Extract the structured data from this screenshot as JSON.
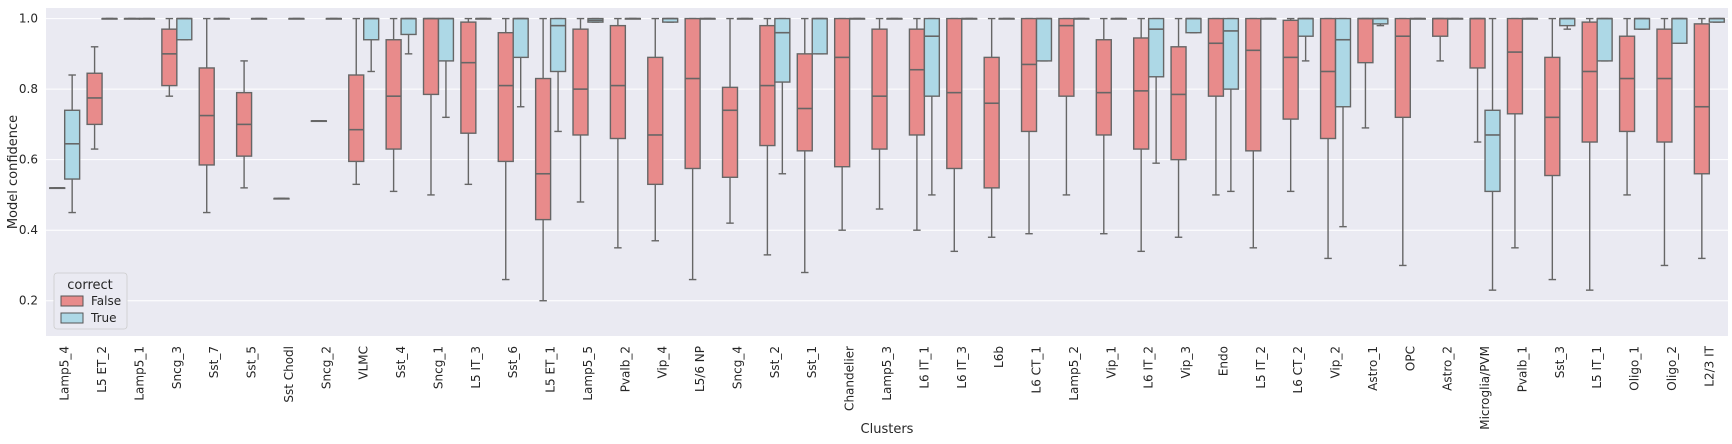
{
  "chart_data": {
    "type": "box",
    "title": "",
    "xlabel": "Clusters",
    "ylabel": "Model confidence",
    "ylim": [
      0.1,
      1.0
    ],
    "yticks": [
      "0.2",
      "0.4",
      "0.6",
      "0.8",
      "1.0"
    ],
    "ytick_values": [
      0.2,
      0.4,
      0.6,
      0.8,
      1.0
    ],
    "grid": true,
    "background_color": "#eaeaf2",
    "legend": {
      "title": "correct",
      "placement": "lower-left",
      "entries": [
        {
          "label": "False",
          "color": "#e88b8b"
        },
        {
          "label": "True",
          "color": "#add8e6"
        }
      ]
    },
    "categories": [
      "Lamp5_4",
      "L5 ET_2",
      "Lamp5_1",
      "Sncg_3",
      "Sst_7",
      "Sst_5",
      "Sst Chodl",
      "Sncg_2",
      "VLMC",
      "Sst_4",
      "Sncg_1",
      "L5 IT_3",
      "Sst_6",
      "L5 ET_1",
      "Lamp5_5",
      "Pvalb_2",
      "Vip_4",
      "L5/6 NP",
      "Sncg_4",
      "Sst_2",
      "Sst_1",
      "Chandelier",
      "Lamp5_3",
      "L6 IT_1",
      "L6 IT_3",
      "L6b",
      "L6 CT_1",
      "Lamp5_2",
      "Vip_1",
      "L6 IT_2",
      "Vip_3",
      "Endo",
      "L5 IT_2",
      "L6 CT_2",
      "Vip_2",
      "Astro_1",
      "OPC",
      "Astro_2",
      "Microglia/PVM",
      "Pvalb_1",
      "Sst_3",
      "L5 IT_1",
      "Oligo_1",
      "Oligo_2",
      "L2/3 IT"
    ],
    "series": [
      {
        "name": "False",
        "boxes": [
          {
            "min": 0.52,
            "q1": 0.52,
            "median": 0.52,
            "q3": 0.52,
            "max": 0.52
          },
          {
            "min": 0.63,
            "q1": 0.7,
            "median": 0.775,
            "q3": 0.845,
            "max": 0.92
          },
          {
            "min": 1.0,
            "q1": 1.0,
            "median": 1.0,
            "q3": 1.0,
            "max": 1.0
          },
          {
            "min": 0.78,
            "q1": 0.81,
            "median": 0.9,
            "q3": 0.97,
            "max": 1.0
          },
          {
            "min": 0.45,
            "q1": 0.585,
            "median": 0.725,
            "q3": 0.86,
            "max": 1.0
          },
          {
            "min": 0.52,
            "q1": 0.61,
            "median": 0.7,
            "q3": 0.79,
            "max": 0.88
          },
          {
            "min": 0.49,
            "q1": 0.49,
            "median": 0.49,
            "q3": 0.49,
            "max": 0.49
          },
          {
            "min": 0.71,
            "q1": 0.71,
            "median": 0.71,
            "q3": 0.71,
            "max": 0.71
          },
          {
            "min": 0.53,
            "q1": 0.595,
            "median": 0.685,
            "q3": 0.84,
            "max": 1.0
          },
          {
            "min": 0.51,
            "q1": 0.63,
            "median": 0.78,
            "q3": 0.94,
            "max": 1.0
          },
          {
            "min": 0.5,
            "q1": 0.785,
            "median": 1.0,
            "q3": 1.0,
            "max": 1.0
          },
          {
            "min": 0.53,
            "q1": 0.675,
            "median": 0.875,
            "q3": 0.99,
            "max": 1.0
          },
          {
            "min": 0.26,
            "q1": 0.595,
            "median": 0.81,
            "q3": 0.96,
            "max": 1.0
          },
          {
            "min": 0.2,
            "q1": 0.43,
            "median": 0.56,
            "q3": 0.83,
            "max": 1.0
          },
          {
            "min": 0.48,
            "q1": 0.67,
            "median": 0.8,
            "q3": 0.97,
            "max": 1.0
          },
          {
            "min": 0.35,
            "q1": 0.66,
            "median": 0.81,
            "q3": 0.98,
            "max": 1.0
          },
          {
            "min": 0.37,
            "q1": 0.53,
            "median": 0.67,
            "q3": 0.89,
            "max": 1.0
          },
          {
            "min": 0.26,
            "q1": 0.575,
            "median": 0.83,
            "q3": 1.0,
            "max": 1.0
          },
          {
            "min": 0.42,
            "q1": 0.55,
            "median": 0.74,
            "q3": 0.805,
            "max": 1.0
          },
          {
            "min": 0.33,
            "q1": 0.64,
            "median": 0.81,
            "q3": 0.98,
            "max": 1.0
          },
          {
            "min": 0.28,
            "q1": 0.625,
            "median": 0.745,
            "q3": 0.9,
            "max": 1.0
          },
          {
            "min": 0.4,
            "q1": 0.58,
            "median": 0.89,
            "q3": 1.0,
            "max": 1.0
          },
          {
            "min": 0.46,
            "q1": 0.63,
            "median": 0.78,
            "q3": 0.97,
            "max": 1.0
          },
          {
            "min": 0.4,
            "q1": 0.67,
            "median": 0.855,
            "q3": 0.97,
            "max": 1.0
          },
          {
            "min": 0.34,
            "q1": 0.575,
            "median": 0.79,
            "q3": 1.0,
            "max": 1.0
          },
          {
            "min": 0.38,
            "q1": 0.52,
            "median": 0.76,
            "q3": 0.89,
            "max": 1.0
          },
          {
            "min": 0.39,
            "q1": 0.68,
            "median": 0.87,
            "q3": 1.0,
            "max": 1.0
          },
          {
            "min": 0.5,
            "q1": 0.78,
            "median": 0.98,
            "q3": 1.0,
            "max": 1.0
          },
          {
            "min": 0.39,
            "q1": 0.67,
            "median": 0.79,
            "q3": 0.94,
            "max": 1.0
          },
          {
            "min": 0.34,
            "q1": 0.63,
            "median": 0.795,
            "q3": 0.945,
            "max": 1.0
          },
          {
            "min": 0.38,
            "q1": 0.6,
            "median": 0.785,
            "q3": 0.92,
            "max": 1.0
          },
          {
            "min": 0.5,
            "q1": 0.78,
            "median": 0.93,
            "q3": 1.0,
            "max": 1.0
          },
          {
            "min": 0.35,
            "q1": 0.625,
            "median": 0.91,
            "q3": 1.0,
            "max": 1.0
          },
          {
            "min": 0.51,
            "q1": 0.715,
            "median": 0.89,
            "q3": 0.995,
            "max": 1.0
          },
          {
            "min": 0.32,
            "q1": 0.66,
            "median": 0.85,
            "q3": 1.0,
            "max": 1.0
          },
          {
            "min": 0.69,
            "q1": 0.875,
            "median": 1.0,
            "q3": 1.0,
            "max": 1.0
          },
          {
            "min": 0.3,
            "q1": 0.72,
            "median": 0.95,
            "q3": 1.0,
            "max": 1.0
          },
          {
            "min": 0.88,
            "q1": 0.95,
            "median": 1.0,
            "q3": 1.0,
            "max": 1.0
          },
          {
            "min": 0.65,
            "q1": 0.86,
            "median": 1.0,
            "q3": 1.0,
            "max": 1.0
          },
          {
            "min": 0.35,
            "q1": 0.73,
            "median": 0.905,
            "q3": 1.0,
            "max": 1.0
          },
          {
            "min": 0.26,
            "q1": 0.555,
            "median": 0.72,
            "q3": 0.89,
            "max": 1.0
          },
          {
            "min": 0.23,
            "q1": 0.65,
            "median": 0.85,
            "q3": 0.99,
            "max": 1.0
          },
          {
            "min": 0.5,
            "q1": 0.68,
            "median": 0.83,
            "q3": 0.95,
            "max": 1.0
          },
          {
            "min": 0.3,
            "q1": 0.65,
            "median": 0.83,
            "q3": 0.97,
            "max": 1.0
          },
          {
            "min": 0.32,
            "q1": 0.56,
            "median": 0.75,
            "q3": 0.985,
            "max": 1.0
          }
        ]
      },
      {
        "name": "True",
        "boxes": [
          {
            "min": 0.45,
            "q1": 0.545,
            "median": 0.645,
            "q3": 0.74,
            "max": 0.84
          },
          {
            "min": 1.0,
            "q1": 1.0,
            "median": 1.0,
            "q3": 1.0,
            "max": 1.0
          },
          {
            "min": 1.0,
            "q1": 1.0,
            "median": 1.0,
            "q3": 1.0,
            "max": 1.0
          },
          {
            "min": 0.94,
            "q1": 0.94,
            "median": 1.0,
            "q3": 1.0,
            "max": 1.0
          },
          {
            "min": 1.0,
            "q1": 1.0,
            "median": 1.0,
            "q3": 1.0,
            "max": 1.0
          },
          {
            "min": 1.0,
            "q1": 1.0,
            "median": 1.0,
            "q3": 1.0,
            "max": 1.0
          },
          {
            "min": 1.0,
            "q1": 1.0,
            "median": 1.0,
            "q3": 1.0,
            "max": 1.0
          },
          {
            "min": 1.0,
            "q1": 1.0,
            "median": 1.0,
            "q3": 1.0,
            "max": 1.0
          },
          {
            "min": 0.85,
            "q1": 0.94,
            "median": 1.0,
            "q3": 1.0,
            "max": 1.0
          },
          {
            "min": 0.9,
            "q1": 0.955,
            "median": 1.0,
            "q3": 1.0,
            "max": 1.0
          },
          {
            "min": 0.72,
            "q1": 0.88,
            "median": 1.0,
            "q3": 1.0,
            "max": 1.0
          },
          {
            "min": 1.0,
            "q1": 1.0,
            "median": 1.0,
            "q3": 1.0,
            "max": 1.0
          },
          {
            "min": 0.75,
            "q1": 0.89,
            "median": 1.0,
            "q3": 1.0,
            "max": 1.0
          },
          {
            "min": 0.68,
            "q1": 0.85,
            "median": 0.98,
            "q3": 1.0,
            "max": 1.0
          },
          {
            "min": 0.99,
            "q1": 0.99,
            "median": 0.995,
            "q3": 1.0,
            "max": 1.0
          },
          {
            "min": 1.0,
            "q1": 1.0,
            "median": 1.0,
            "q3": 1.0,
            "max": 1.0
          },
          {
            "min": 0.99,
            "q1": 0.99,
            "median": 1.0,
            "q3": 1.0,
            "max": 1.0
          },
          {
            "min": 1.0,
            "q1": 1.0,
            "median": 1.0,
            "q3": 1.0,
            "max": 1.0
          },
          {
            "min": 1.0,
            "q1": 1.0,
            "median": 1.0,
            "q3": 1.0,
            "max": 1.0
          },
          {
            "min": 0.56,
            "q1": 0.82,
            "median": 0.96,
            "q3": 1.0,
            "max": 1.0
          },
          {
            "min": 0.9,
            "q1": 0.9,
            "median": 1.0,
            "q3": 1.0,
            "max": 1.0
          },
          {
            "min": 1.0,
            "q1": 1.0,
            "median": 1.0,
            "q3": 1.0,
            "max": 1.0
          },
          {
            "min": 1.0,
            "q1": 1.0,
            "median": 1.0,
            "q3": 1.0,
            "max": 1.0
          },
          {
            "min": 0.5,
            "q1": 0.78,
            "median": 0.95,
            "q3": 1.0,
            "max": 1.0
          },
          {
            "min": 1.0,
            "q1": 1.0,
            "median": 1.0,
            "q3": 1.0,
            "max": 1.0
          },
          {
            "min": 1.0,
            "q1": 1.0,
            "median": 1.0,
            "q3": 1.0,
            "max": 1.0
          },
          {
            "min": 0.88,
            "q1": 0.88,
            "median": 1.0,
            "q3": 1.0,
            "max": 1.0
          },
          {
            "min": 1.0,
            "q1": 1.0,
            "median": 1.0,
            "q3": 1.0,
            "max": 1.0
          },
          {
            "min": 1.0,
            "q1": 1.0,
            "median": 1.0,
            "q3": 1.0,
            "max": 1.0
          },
          {
            "min": 0.59,
            "q1": 0.835,
            "median": 0.97,
            "q3": 1.0,
            "max": 1.0
          },
          {
            "min": 0.96,
            "q1": 0.96,
            "median": 1.0,
            "q3": 1.0,
            "max": 1.0
          },
          {
            "min": 0.51,
            "q1": 0.8,
            "median": 0.965,
            "q3": 1.0,
            "max": 1.0
          },
          {
            "min": 1.0,
            "q1": 1.0,
            "median": 1.0,
            "q3": 1.0,
            "max": 1.0
          },
          {
            "min": 0.88,
            "q1": 0.95,
            "median": 1.0,
            "q3": 1.0,
            "max": 1.0
          },
          {
            "min": 0.41,
            "q1": 0.75,
            "median": 0.94,
            "q3": 1.0,
            "max": 1.0
          },
          {
            "min": 0.98,
            "q1": 0.985,
            "median": 1.0,
            "q3": 1.0,
            "max": 1.0
          },
          {
            "min": 1.0,
            "q1": 1.0,
            "median": 1.0,
            "q3": 1.0,
            "max": 1.0
          },
          {
            "min": 1.0,
            "q1": 1.0,
            "median": 1.0,
            "q3": 1.0,
            "max": 1.0
          },
          {
            "min": 0.23,
            "q1": 0.51,
            "median": 0.67,
            "q3": 0.74,
            "max": 1.0
          },
          {
            "min": 1.0,
            "q1": 1.0,
            "median": 1.0,
            "q3": 1.0,
            "max": 1.0
          },
          {
            "min": 0.97,
            "q1": 0.98,
            "median": 1.0,
            "q3": 1.0,
            "max": 1.0
          },
          {
            "min": 0.88,
            "q1": 0.88,
            "median": 1.0,
            "q3": 1.0,
            "max": 1.0
          },
          {
            "min": 0.97,
            "q1": 0.97,
            "median": 1.0,
            "q3": 1.0,
            "max": 1.0
          },
          {
            "min": 0.93,
            "q1": 0.93,
            "median": 1.0,
            "q3": 1.0,
            "max": 1.0
          },
          {
            "min": 0.99,
            "q1": 0.99,
            "median": 1.0,
            "q3": 1.0,
            "max": 1.0
          }
        ]
      }
    ]
  }
}
